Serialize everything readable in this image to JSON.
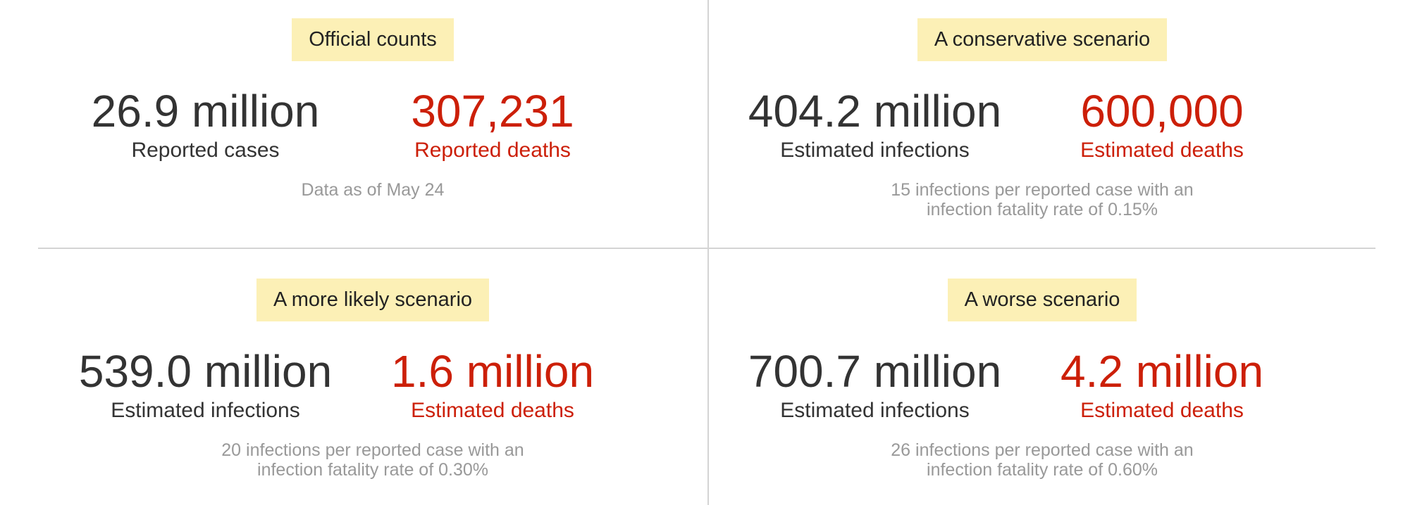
{
  "panels": [
    {
      "title": "Official counts",
      "left": {
        "value": "26.9 million",
        "label": "Reported cases"
      },
      "right": {
        "value": "307,231",
        "label": "Reported deaths"
      },
      "note": [
        "Data as of May 24",
        ""
      ]
    },
    {
      "title": "A conservative scenario",
      "left": {
        "value": "404.2 million",
        "label": "Estimated infections"
      },
      "right": {
        "value": "600,000",
        "label": "Estimated deaths"
      },
      "note": [
        "15 infections per reported case with an",
        "infection fatality rate of 0.15%"
      ]
    },
    {
      "title": "A more likely scenario",
      "left": {
        "value": "539.0 million",
        "label": "Estimated infections"
      },
      "right": {
        "value": "1.6 million",
        "label": "Estimated deaths"
      },
      "note": [
        "20 infections per reported case with an",
        "infection fatality rate of 0.30%"
      ]
    },
    {
      "title": "A worse scenario",
      "left": {
        "value": "700.7 million",
        "label": "Estimated infections"
      },
      "right": {
        "value": "4.2 million",
        "label": "Estimated deaths"
      },
      "note": [
        "26 infections per reported case with an",
        "infection fatality rate of 0.60%"
      ]
    }
  ],
  "colors": {
    "label_bg": "#fcf0b6",
    "primary_text": "#333333",
    "death_red": "#cc1f08",
    "note_gray": "#999999",
    "divider": "#d4d4d4"
  }
}
